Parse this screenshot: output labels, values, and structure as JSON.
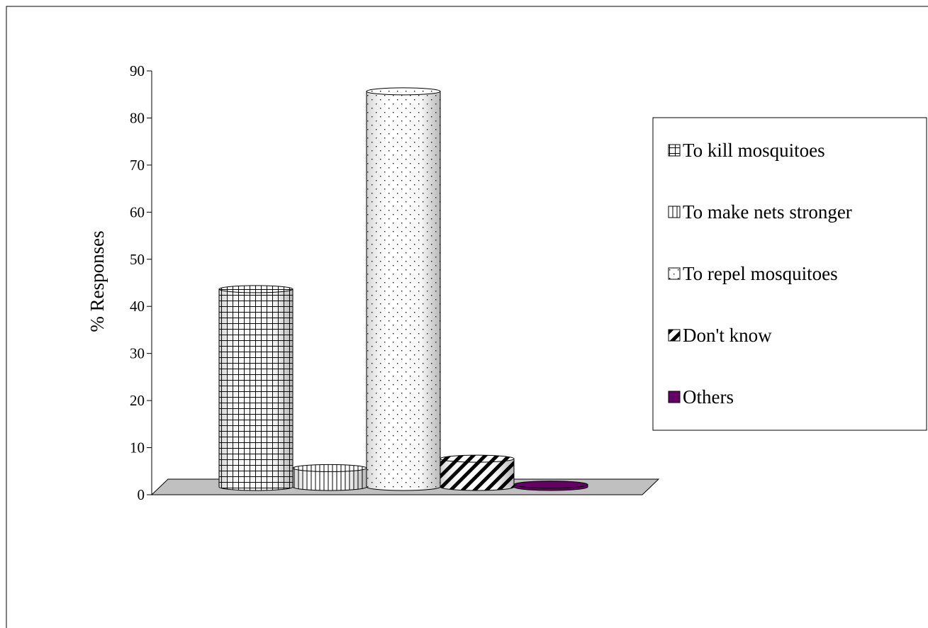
{
  "chart_data": {
    "type": "bar",
    "style": "3d-cylinder",
    "series": [
      {
        "name": "To kill mosquitoes",
        "value": 42,
        "pattern": "grid"
      },
      {
        "name": "To make nets stronger",
        "value": 4,
        "pattern": "vertical-lines"
      },
      {
        "name": "To repel mosquitoes",
        "value": 84,
        "pattern": "dots"
      },
      {
        "name": "Don't know",
        "value": 6,
        "pattern": "diagonal-stripes"
      },
      {
        "name": "Others",
        "value": 0.5,
        "pattern": "solid",
        "color": "#660066"
      }
    ],
    "ylabel": "% Responses",
    "xlabel": "",
    "title": "",
    "ylim": [
      0,
      90
    ],
    "yticks": [
      "0",
      "10",
      "20",
      "30",
      "40",
      "50",
      "60",
      "70",
      "80",
      "90"
    ],
    "grid": false,
    "legend_position": "right",
    "floor_color": "#c0c0c0"
  }
}
